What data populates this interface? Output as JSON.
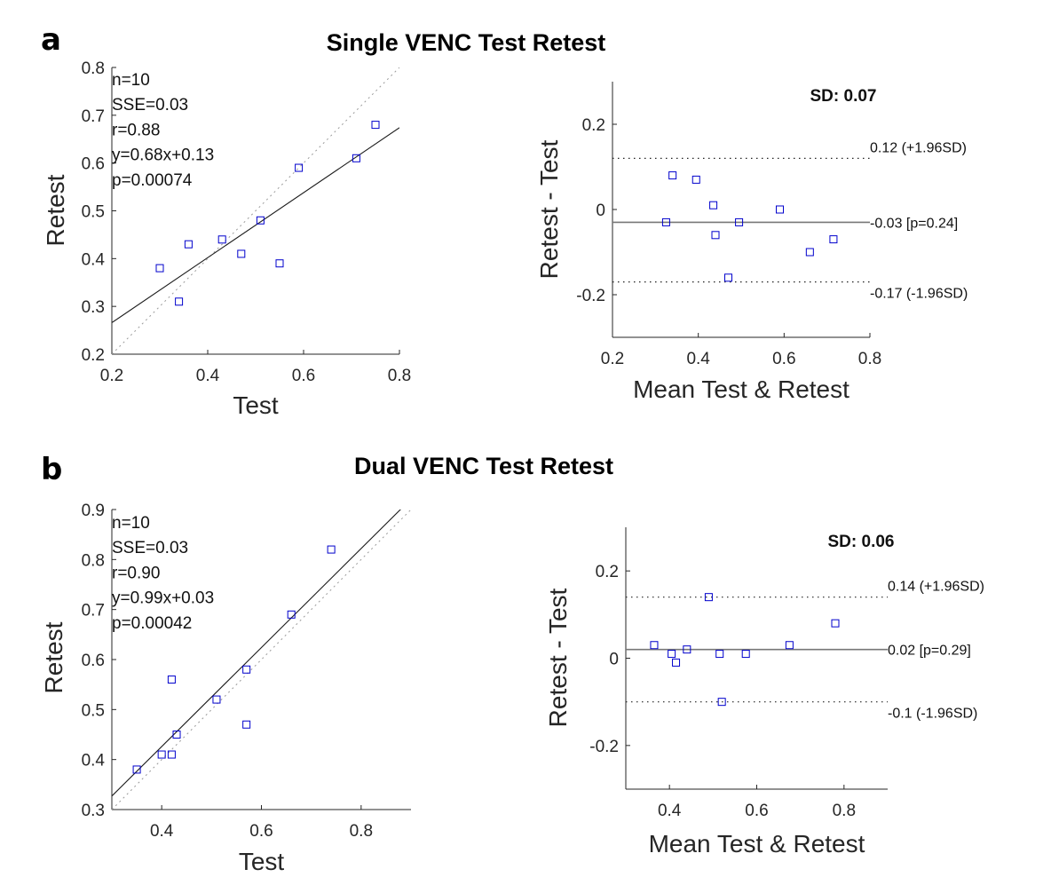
{
  "figure": {
    "panel_a_letter": "a",
    "panel_b_letter": "b",
    "panel_a_title": "Single VENC Test Retest",
    "panel_b_title": "Dual VENC Test Retest"
  },
  "chart_data": [
    {
      "id": "a-scatter",
      "type": "scatter",
      "title": "Single VENC Test Retest",
      "xlabel": "Test",
      "ylabel": "Retest",
      "xlim": [
        0.2,
        0.8
      ],
      "ylim": [
        0.2,
        0.8
      ],
      "xticks": [
        0.2,
        0.4,
        0.6,
        0.8
      ],
      "yticks": [
        0.2,
        0.3,
        0.4,
        0.5,
        0.6,
        0.7,
        0.8
      ],
      "xtick_labels": [
        "0.2",
        "0.4",
        "0.6",
        "0.8"
      ],
      "ytick_labels": [
        "0.2",
        "0.3",
        "0.4",
        "0.5",
        "0.6",
        "0.7",
        "0.8"
      ],
      "points": [
        [
          0.3,
          0.38
        ],
        [
          0.34,
          0.31
        ],
        [
          0.36,
          0.43
        ],
        [
          0.43,
          0.44
        ],
        [
          0.47,
          0.41
        ],
        [
          0.51,
          0.48
        ],
        [
          0.55,
          0.39
        ],
        [
          0.59,
          0.59
        ],
        [
          0.71,
          0.61
        ],
        [
          0.75,
          0.68
        ]
      ],
      "fit": {
        "slope": 0.68,
        "intercept": 0.13
      },
      "identity_line": true,
      "stats": [
        "n=10",
        "SSE=0.03",
        "r=0.88",
        "y=0.68x+0.13",
        "p=0.00074"
      ]
    },
    {
      "id": "a-bland",
      "type": "scatter",
      "xlabel": "Mean Test & Retest",
      "ylabel": "Retest - Test",
      "xlim": [
        0.2,
        0.8
      ],
      "ylim": [
        -0.3,
        0.3
      ],
      "xticks": [
        0.2,
        0.4,
        0.6,
        0.8
      ],
      "yticks": [
        -0.2,
        0,
        0.2
      ],
      "xtick_labels": [
        "0.2",
        "0.4",
        "0.6",
        "0.8"
      ],
      "ytick_labels": [
        "-0.2",
        "0",
        "0.2"
      ],
      "points": [
        [
          0.325,
          -0.03
        ],
        [
          0.34,
          0.08
        ],
        [
          0.395,
          0.07
        ],
        [
          0.435,
          0.01
        ],
        [
          0.44,
          -0.06
        ],
        [
          0.47,
          -0.16
        ],
        [
          0.495,
          -0.03
        ],
        [
          0.59,
          0.0
        ],
        [
          0.66,
          -0.1
        ],
        [
          0.715,
          -0.07
        ]
      ],
      "mean_line": -0.03,
      "upper_loa": 0.12,
      "lower_loa": -0.17,
      "sd_label": "SD: 0.07",
      "upper_label": "0.12 (+1.96SD)",
      "mean_label": "-0.03 [p=0.24]",
      "lower_label": "-0.17 (-1.96SD)"
    },
    {
      "id": "b-scatter",
      "type": "scatter",
      "title": "Dual VENC Test Retest",
      "xlabel": "Test",
      "ylabel": "Retest",
      "xlim": [
        0.3,
        0.9
      ],
      "ylim": [
        0.3,
        0.9
      ],
      "xticks": [
        0.4,
        0.6,
        0.8
      ],
      "yticks": [
        0.3,
        0.4,
        0.5,
        0.6,
        0.7,
        0.8,
        0.9
      ],
      "xtick_labels": [
        "0.4",
        "0.6",
        "0.8"
      ],
      "ytick_labels": [
        "0.3",
        "0.4",
        "0.5",
        "0.6",
        "0.7",
        "0.8",
        "0.9"
      ],
      "points": [
        [
          0.35,
          0.38
        ],
        [
          0.4,
          0.41
        ],
        [
          0.42,
          0.41
        ],
        [
          0.42,
          0.56
        ],
        [
          0.43,
          0.45
        ],
        [
          0.51,
          0.52
        ],
        [
          0.57,
          0.47
        ],
        [
          0.57,
          0.58
        ],
        [
          0.66,
          0.69
        ],
        [
          0.74,
          0.82
        ]
      ],
      "fit": {
        "slope": 0.99,
        "intercept": 0.03
      },
      "identity_line": true,
      "stats": [
        "n=10",
        "SSE=0.03",
        "r=0.90",
        "y=0.99x+0.03",
        "p=0.00042"
      ]
    },
    {
      "id": "b-bland",
      "type": "scatter",
      "xlabel": "Mean Test & Retest",
      "ylabel": "Retest - Test",
      "xlim": [
        0.3,
        0.9
      ],
      "ylim": [
        -0.3,
        0.3
      ],
      "xticks": [
        0.4,
        0.6,
        0.8
      ],
      "yticks": [
        -0.2,
        0,
        0.2
      ],
      "xtick_labels": [
        "0.4",
        "0.6",
        "0.8"
      ],
      "ytick_labels": [
        "-0.2",
        "0",
        "0.2"
      ],
      "points": [
        [
          0.365,
          0.03
        ],
        [
          0.405,
          0.01
        ],
        [
          0.415,
          -0.01
        ],
        [
          0.44,
          0.02
        ],
        [
          0.49,
          0.14
        ],
        [
          0.515,
          0.01
        ],
        [
          0.52,
          -0.1
        ],
        [
          0.575,
          0.01
        ],
        [
          0.675,
          0.03
        ],
        [
          0.78,
          0.08
        ]
      ],
      "mean_line": 0.02,
      "upper_loa": 0.14,
      "lower_loa": -0.1,
      "sd_label": "SD: 0.06",
      "upper_label": "0.14 (+1.96SD)",
      "mean_label": "0.02 [p=0.29]",
      "lower_label": "-0.1 (-1.96SD)"
    }
  ]
}
